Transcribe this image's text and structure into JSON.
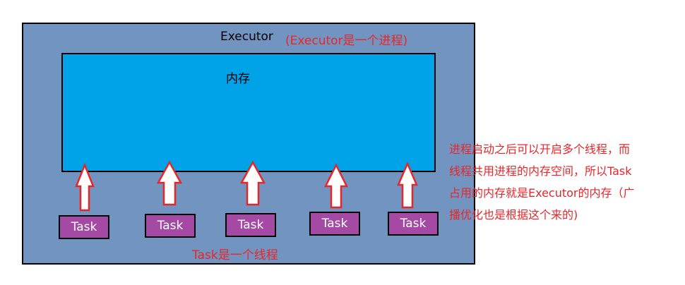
{
  "executor": {
    "title": "Executor",
    "note": "(Executor是一个进程)"
  },
  "memory": {
    "label": "内存"
  },
  "tasks": [
    {
      "label": "Task"
    },
    {
      "label": "Task"
    },
    {
      "label": "Task"
    },
    {
      "label": "Task"
    },
    {
      "label": "Task"
    }
  ],
  "task_note": "Task是一个线程",
  "explanation": {
    "lines": [
      "进程启动之后可以开启多个线程，而",
      "线程共用进程的内存空间，所以Task",
      "占用的内存就是Executor的内存（广",
      "播优化也是根据这个来的)"
    ]
  },
  "colors": {
    "executor_fill": "#7294c0",
    "memory_fill": "#00a3e8",
    "task_fill": "#a449a4",
    "accent_red": "#e8262a"
  }
}
